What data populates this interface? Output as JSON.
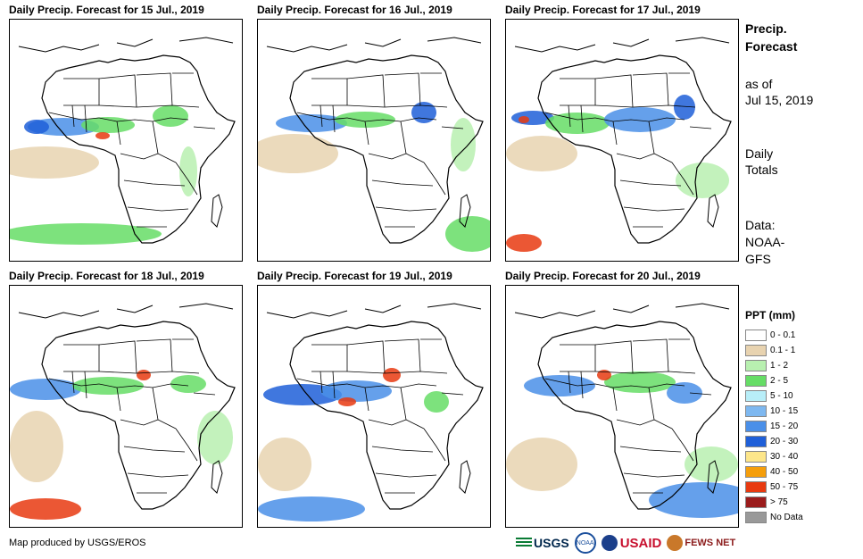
{
  "panels": [
    {
      "title": "Daily Precip. Forecast for 15 Jul., 2019"
    },
    {
      "title": "Daily Precip. Forecast for 16 Jul., 2019"
    },
    {
      "title": "Daily Precip. Forecast for 17 Jul., 2019"
    },
    {
      "title": "Daily Precip. Forecast for 18 Jul., 2019"
    },
    {
      "title": "Daily Precip. Forecast for 19 Jul., 2019"
    },
    {
      "title": "Daily Precip. Forecast for 20 Jul., 2019"
    }
  ],
  "side": {
    "heading_line1": "Precip.",
    "heading_line2": "Forecast",
    "asof_line1": "as of",
    "asof_line2": "Jul 15, 2019",
    "totals_line1": "Daily",
    "totals_line2": "Totals",
    "data_line1": "Data:",
    "data_line2": "NOAA-",
    "data_line3": "GFS"
  },
  "legend": {
    "title": "PPT (mm)",
    "items": [
      {
        "label": "0 - 0.1",
        "color": "#ffffff"
      },
      {
        "label": "0.1 - 1",
        "color": "#e8d3b0"
      },
      {
        "label": "1 - 2",
        "color": "#b8f0b0"
      },
      {
        "label": "2 - 5",
        "color": "#66dd66"
      },
      {
        "label": "5 - 10",
        "color": "#b8eef8"
      },
      {
        "label": "10 - 15",
        "color": "#7eb8f0"
      },
      {
        "label": "15 - 20",
        "color": "#4a8fe8"
      },
      {
        "label": "20 - 30",
        "color": "#1f5fd8"
      },
      {
        "label": "30 - 40",
        "color": "#fde68a"
      },
      {
        "label": "40 - 50",
        "color": "#f59e0b"
      },
      {
        "label": "50 - 75",
        "color": "#e83a10"
      },
      {
        "label": "> 75",
        "color": "#9b1c1c"
      },
      {
        "label": "No Data",
        "color": "#999999"
      }
    ]
  },
  "credit": "Map produced by USGS/EROS",
  "logos": {
    "usgs": "USGS",
    "noaa": "NOAA",
    "usaid": "USAID",
    "fews": "FEWS NET"
  }
}
